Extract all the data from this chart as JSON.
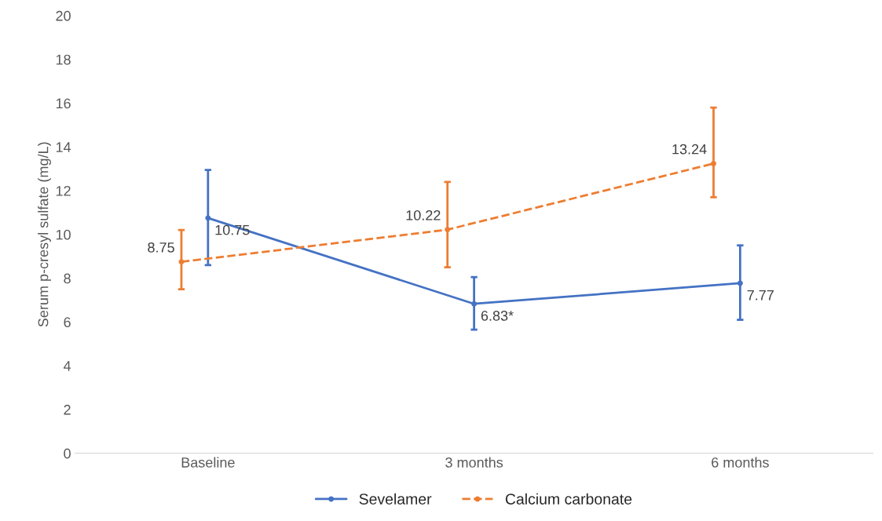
{
  "chart_data": {
    "type": "line",
    "ylabel": "Serum p-cresyl sulfate (mg/L)",
    "categories": [
      "Baseline",
      "3 months",
      "6 months"
    ],
    "series": [
      {
        "name": "Sevelamer",
        "color": "#4472c4",
        "values": [
          10.75,
          6.83,
          7.77
        ],
        "errors": [
          [
            8.6,
            12.95
          ],
          [
            5.65,
            8.05
          ],
          [
            6.1,
            9.5
          ]
        ],
        "value_labels": [
          "10.75",
          "6.83*",
          "7.77"
        ],
        "line_style": "solid"
      },
      {
        "name": "Calcium carbonate",
        "color": "#ed7d31",
        "values": [
          8.75,
          10.22,
          13.24
        ],
        "errors": [
          [
            7.5,
            10.2
          ],
          [
            8.5,
            12.4
          ],
          [
            11.7,
            15.8
          ]
        ],
        "value_labels": [
          "8.75",
          "10.22",
          "13.24"
        ],
        "line_style": "dashed"
      }
    ],
    "ylim": [
      0,
      20
    ],
    "yticks": [
      0,
      2,
      4,
      6,
      8,
      10,
      12,
      14,
      16,
      18,
      20
    ],
    "grid": false,
    "legend": "bottom",
    "marker": "circle"
  }
}
